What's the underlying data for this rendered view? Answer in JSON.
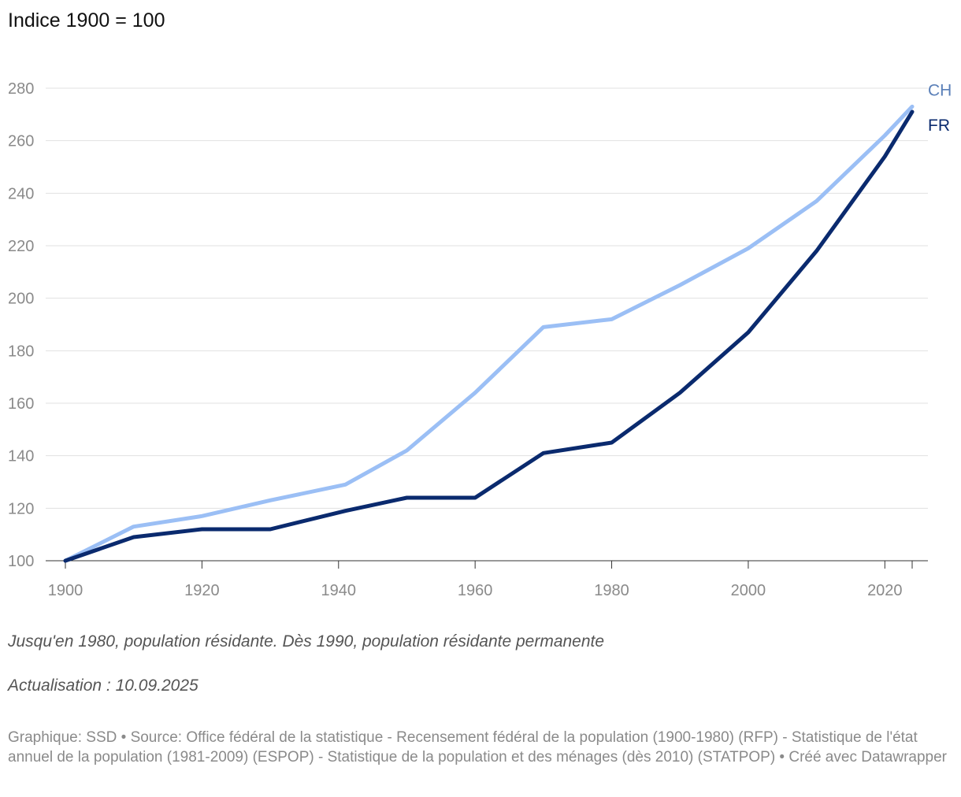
{
  "header": {
    "title": "Indice 1900 = 100"
  },
  "chart_data": {
    "type": "line",
    "title": "Indice 1900 = 100",
    "xlabel": "",
    "ylabel": "",
    "xlim": [
      1900,
      2024
    ],
    "ylim": [
      100,
      280
    ],
    "y_ticks": [
      100,
      120,
      140,
      160,
      180,
      200,
      220,
      240,
      260,
      280
    ],
    "x_ticks": [
      1900,
      1920,
      1940,
      1960,
      1980,
      2000,
      2020
    ],
    "grid": true,
    "legend": "right, labels at line ends",
    "series": [
      {
        "name": "CH",
        "color": "#9bbff5",
        "label_color": "#5b80b8",
        "x": [
          1900,
          1910,
          1920,
          1930,
          1941,
          1950,
          1960,
          1970,
          1980,
          1990,
          2000,
          2010,
          2020,
          2024
        ],
        "values": [
          100,
          113,
          117,
          123,
          129,
          142,
          164,
          189,
          192,
          205,
          219,
          237,
          262,
          273
        ]
      },
      {
        "name": "FR",
        "color": "#0a2a6e",
        "label_color": "#0a2a6e",
        "x": [
          1900,
          1910,
          1920,
          1930,
          1941,
          1950,
          1960,
          1970,
          1980,
          1990,
          2000,
          2010,
          2020,
          2024
        ],
        "values": [
          100,
          109,
          112,
          112,
          119,
          124,
          124,
          141,
          145,
          164,
          187,
          218,
          254,
          271
        ]
      }
    ]
  },
  "notes": {
    "definition": "Jusqu'en 1980, population résidante. Dès 1990, population résidante permanente",
    "update": "Actualisation : 10.09.2025"
  },
  "footer": {
    "text": "Graphique: SSD • Source: Office fédéral de la statistique - Recensement fédéral de la population (1900-1980) (RFP) - Statistique de l'état annuel de la population (1981-2009) (ESPOP) - Statistique de la population et des ménages (dès 2010) (STATPOP)  • Créé avec Datawrapper"
  }
}
